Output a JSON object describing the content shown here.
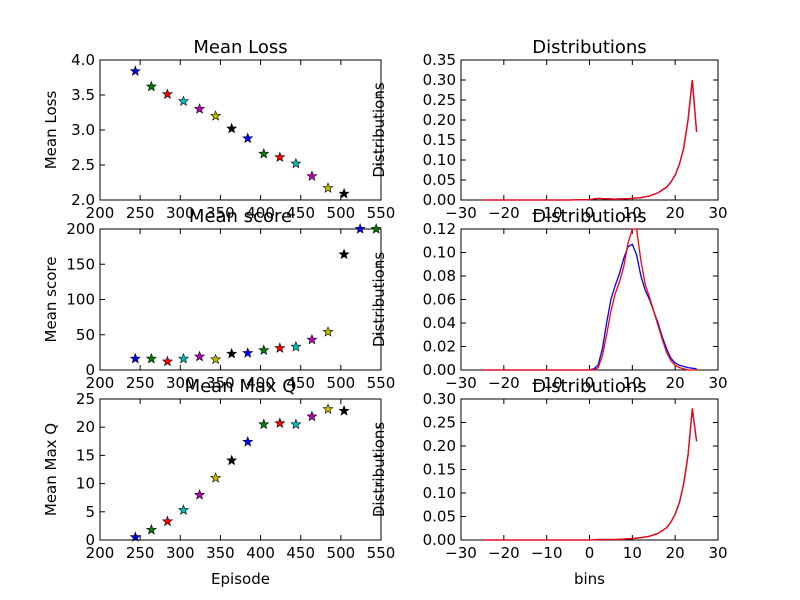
{
  "chart_data": [
    {
      "type": "scatter",
      "title": "Mean Loss",
      "xlabel": "",
      "ylabel": "Mean Loss",
      "xlim": [
        200,
        550
      ],
      "ylim": [
        2.0,
        4.0
      ],
      "xticks": [
        "200",
        "250",
        "300",
        "350",
        "400",
        "450",
        "500",
        "550"
      ],
      "yticks": [
        "2.0",
        "2.5",
        "3.0",
        "3.5",
        "4.0"
      ],
      "marker": "star",
      "points": [
        {
          "x": 244,
          "y": 3.84,
          "color": "#0000ff"
        },
        {
          "x": 264,
          "y": 3.62,
          "color": "#008000"
        },
        {
          "x": 284,
          "y": 3.51,
          "color": "#ff0000"
        },
        {
          "x": 304,
          "y": 3.41,
          "color": "#00bfbf"
        },
        {
          "x": 324,
          "y": 3.3,
          "color": "#bf00bf"
        },
        {
          "x": 344,
          "y": 3.2,
          "color": "#bfbf00"
        },
        {
          "x": 364,
          "y": 3.02,
          "color": "#000000"
        },
        {
          "x": 384,
          "y": 2.88,
          "color": "#0000ff"
        },
        {
          "x": 404,
          "y": 2.66,
          "color": "#008000"
        },
        {
          "x": 424,
          "y": 2.61,
          "color": "#ff0000"
        },
        {
          "x": 444,
          "y": 2.52,
          "color": "#00bfbf"
        },
        {
          "x": 464,
          "y": 2.34,
          "color": "#bf00bf"
        },
        {
          "x": 484,
          "y": 2.17,
          "color": "#bfbf00"
        },
        {
          "x": 504,
          "y": 2.09,
          "color": "#000000"
        }
      ]
    },
    {
      "type": "line",
      "title": "Distributions",
      "xlabel": "",
      "ylabel": "Distributions",
      "xlim": [
        -30,
        30
      ],
      "ylim": [
        0,
        0.35
      ],
      "xticks": [
        "−30",
        "−20",
        "−10",
        "0",
        "10",
        "20",
        "30"
      ],
      "yticks": [
        "0.00",
        "0.05",
        "0.10",
        "0.15",
        "0.20",
        "0.25",
        "0.30",
        "0.35"
      ],
      "x": [
        -25,
        -5,
        0,
        2,
        4,
        6,
        8,
        10,
        12,
        14,
        16,
        18,
        19,
        20,
        21,
        22,
        23,
        24,
        25
      ],
      "series": [
        {
          "color": "#0000ff",
          "values": [
            0.0,
            0.0,
            0.001,
            0.004,
            0.003,
            0.002,
            0.003,
            0.004,
            0.006,
            0.01,
            0.018,
            0.032,
            0.045,
            0.062,
            0.09,
            0.13,
            0.2,
            0.3,
            0.17
          ]
        },
        {
          "color": "#ff0000",
          "values": [
            0.0,
            0.0,
            0.001,
            0.004,
            0.003,
            0.002,
            0.003,
            0.004,
            0.006,
            0.01,
            0.018,
            0.032,
            0.045,
            0.062,
            0.09,
            0.13,
            0.2,
            0.3,
            0.17
          ]
        }
      ]
    },
    {
      "type": "scatter",
      "title": "Mean score",
      "xlabel": "",
      "ylabel": "Mean score",
      "xlim": [
        200,
        550
      ],
      "ylim": [
        0,
        200
      ],
      "xticks": [
        "200",
        "250",
        "300",
        "350",
        "400",
        "450",
        "500",
        "550"
      ],
      "yticks": [
        "0",
        "50",
        "100",
        "150",
        "200"
      ],
      "marker": "star",
      "points": [
        {
          "x": 244,
          "y": 16,
          "color": "#0000ff"
        },
        {
          "x": 264,
          "y": 16,
          "color": "#008000"
        },
        {
          "x": 284,
          "y": 12,
          "color": "#ff0000"
        },
        {
          "x": 304,
          "y": 16,
          "color": "#00bfbf"
        },
        {
          "x": 324,
          "y": 19,
          "color": "#bf00bf"
        },
        {
          "x": 344,
          "y": 15,
          "color": "#bfbf00"
        },
        {
          "x": 364,
          "y": 23,
          "color": "#000000"
        },
        {
          "x": 384,
          "y": 24,
          "color": "#0000ff"
        },
        {
          "x": 404,
          "y": 28,
          "color": "#008000"
        },
        {
          "x": 424,
          "y": 31,
          "color": "#ff0000"
        },
        {
          "x": 444,
          "y": 33,
          "color": "#00bfbf"
        },
        {
          "x": 464,
          "y": 43,
          "color": "#bf00bf"
        },
        {
          "x": 484,
          "y": 54,
          "color": "#bfbf00"
        },
        {
          "x": 504,
          "y": 164,
          "color": "#000000"
        },
        {
          "x": 524,
          "y": 200,
          "color": "#0000ff"
        },
        {
          "x": 544,
          "y": 200,
          "color": "#008000"
        }
      ]
    },
    {
      "type": "line",
      "title": "Distributions",
      "xlabel": "",
      "ylabel": "Distributions",
      "xlim": [
        -30,
        30
      ],
      "ylim": [
        0,
        0.12
      ],
      "xticks": [
        "−30",
        "−20",
        "−10",
        "0",
        "10",
        "20",
        "30"
      ],
      "yticks": [
        "0.00",
        "0.02",
        "0.04",
        "0.06",
        "0.08",
        "0.10",
        "0.12"
      ],
      "x": [
        -25,
        0,
        1,
        2,
        3,
        4,
        5,
        6,
        7,
        8,
        9,
        10,
        11,
        12,
        13,
        14,
        15,
        16,
        17,
        18,
        19,
        20,
        21,
        22,
        23,
        25
      ],
      "series": [
        {
          "color": "#0000ff",
          "values": [
            0.0,
            0.0,
            0.001,
            0.004,
            0.018,
            0.04,
            0.06,
            0.072,
            0.082,
            0.095,
            0.105,
            0.107,
            0.098,
            0.08,
            0.068,
            0.06,
            0.05,
            0.04,
            0.028,
            0.018,
            0.01,
            0.006,
            0.004,
            0.003,
            0.002,
            0.001
          ]
        },
        {
          "color": "#ff0000",
          "values": [
            0.0,
            0.0,
            0.0,
            0.002,
            0.012,
            0.03,
            0.05,
            0.065,
            0.075,
            0.088,
            0.108,
            0.12,
            0.12,
            0.093,
            0.073,
            0.062,
            0.05,
            0.038,
            0.026,
            0.015,
            0.008,
            0.004,
            0.002,
            0.001,
            0.0,
            0.0
          ]
        }
      ]
    },
    {
      "type": "scatter",
      "title": "Mean Max Q",
      "xlabel": "Episode",
      "ylabel": "Mean Max Q",
      "xlim": [
        200,
        550
      ],
      "ylim": [
        0,
        25
      ],
      "xticks": [
        "200",
        "250",
        "300",
        "350",
        "400",
        "450",
        "500",
        "550"
      ],
      "yticks": [
        "0",
        "5",
        "10",
        "15",
        "20",
        "25"
      ],
      "marker": "star",
      "points": [
        {
          "x": 244,
          "y": 0.5,
          "color": "#0000ff"
        },
        {
          "x": 264,
          "y": 1.8,
          "color": "#008000"
        },
        {
          "x": 284,
          "y": 3.3,
          "color": "#ff0000"
        },
        {
          "x": 304,
          "y": 5.3,
          "color": "#00bfbf"
        },
        {
          "x": 324,
          "y": 8.0,
          "color": "#bf00bf"
        },
        {
          "x": 344,
          "y": 11.0,
          "color": "#bfbf00"
        },
        {
          "x": 364,
          "y": 14.1,
          "color": "#000000"
        },
        {
          "x": 384,
          "y": 17.4,
          "color": "#0000ff"
        },
        {
          "x": 404,
          "y": 20.5,
          "color": "#008000"
        },
        {
          "x": 424,
          "y": 20.7,
          "color": "#ff0000"
        },
        {
          "x": 444,
          "y": 20.5,
          "color": "#00bfbf"
        },
        {
          "x": 464,
          "y": 21.9,
          "color": "#bf00bf"
        },
        {
          "x": 484,
          "y": 23.2,
          "color": "#bfbf00"
        },
        {
          "x": 504,
          "y": 22.9,
          "color": "#000000"
        }
      ]
    },
    {
      "type": "line",
      "title": "Distributions",
      "xlabel": "bins",
      "ylabel": "Distributions",
      "xlim": [
        -30,
        30
      ],
      "ylim": [
        0,
        0.3
      ],
      "xticks": [
        "−30",
        "−20",
        "−10",
        "0",
        "10",
        "20",
        "30"
      ],
      "yticks": [
        "0.00",
        "0.05",
        "0.10",
        "0.15",
        "0.20",
        "0.25",
        "0.30"
      ],
      "x": [
        -25,
        -5,
        0,
        2,
        4,
        6,
        8,
        10,
        12,
        14,
        16,
        18,
        19,
        20,
        21,
        22,
        23,
        24,
        25
      ],
      "series": [
        {
          "color": "#0000ff",
          "values": [
            0.0,
            0.0,
            0.0,
            0.001,
            0.001,
            0.001,
            0.002,
            0.003,
            0.005,
            0.008,
            0.014,
            0.026,
            0.038,
            0.055,
            0.08,
            0.12,
            0.18,
            0.28,
            0.21
          ]
        },
        {
          "color": "#ff0000",
          "values": [
            0.0,
            0.0,
            0.0,
            0.001,
            0.001,
            0.001,
            0.002,
            0.003,
            0.005,
            0.008,
            0.014,
            0.026,
            0.038,
            0.055,
            0.08,
            0.12,
            0.18,
            0.28,
            0.21
          ]
        }
      ]
    }
  ]
}
